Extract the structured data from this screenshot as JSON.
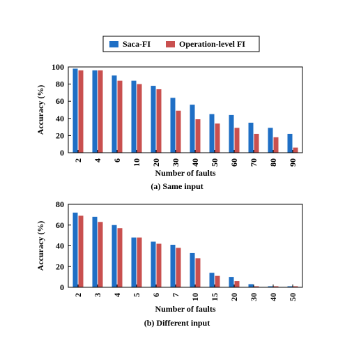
{
  "legend": {
    "items": [
      {
        "label": "Saca-FI",
        "color": "#1f6fc5"
      },
      {
        "label": "Operation-level FI",
        "color": "#c9504f"
      }
    ]
  },
  "chart_data": [
    {
      "type": "bar",
      "caption": "(a) Same input",
      "xlabel": "Number of faults",
      "ylabel": "Accuracy (%)",
      "ylim": [
        0,
        100
      ],
      "yticks": [
        0,
        20,
        40,
        60,
        80,
        100
      ],
      "categories": [
        "2",
        "4",
        "6",
        "10",
        "20",
        "30",
        "40",
        "50",
        "60",
        "70",
        "80",
        "90"
      ],
      "series": [
        {
          "name": "Saca-FI",
          "values": [
            98,
            96,
            90,
            84,
            78,
            64,
            56,
            45,
            44,
            35,
            29,
            22
          ]
        },
        {
          "name": "Operation-level FI",
          "values": [
            96,
            96,
            84,
            80,
            74,
            49,
            39,
            34,
            29,
            22,
            18,
            6
          ]
        }
      ]
    },
    {
      "type": "bar",
      "caption": "(b) Different input",
      "xlabel": "Number of faults",
      "ylabel": "Accuracy (%)",
      "ylim": [
        0,
        80
      ],
      "yticks": [
        0,
        20,
        40,
        60,
        80
      ],
      "categories": [
        "2",
        "3",
        "4",
        "5",
        "6",
        "7",
        "10",
        "15",
        "20",
        "30",
        "40",
        "50"
      ],
      "series": [
        {
          "name": "Saca-FI",
          "values": [
            72,
            68,
            60,
            48,
            44,
            41,
            33,
            14,
            10,
            3,
            1,
            1
          ]
        },
        {
          "name": "Operation-level FI",
          "values": [
            69,
            63,
            57,
            48,
            42,
            38,
            28,
            11,
            6,
            1,
            1,
            1
          ]
        }
      ]
    }
  ]
}
